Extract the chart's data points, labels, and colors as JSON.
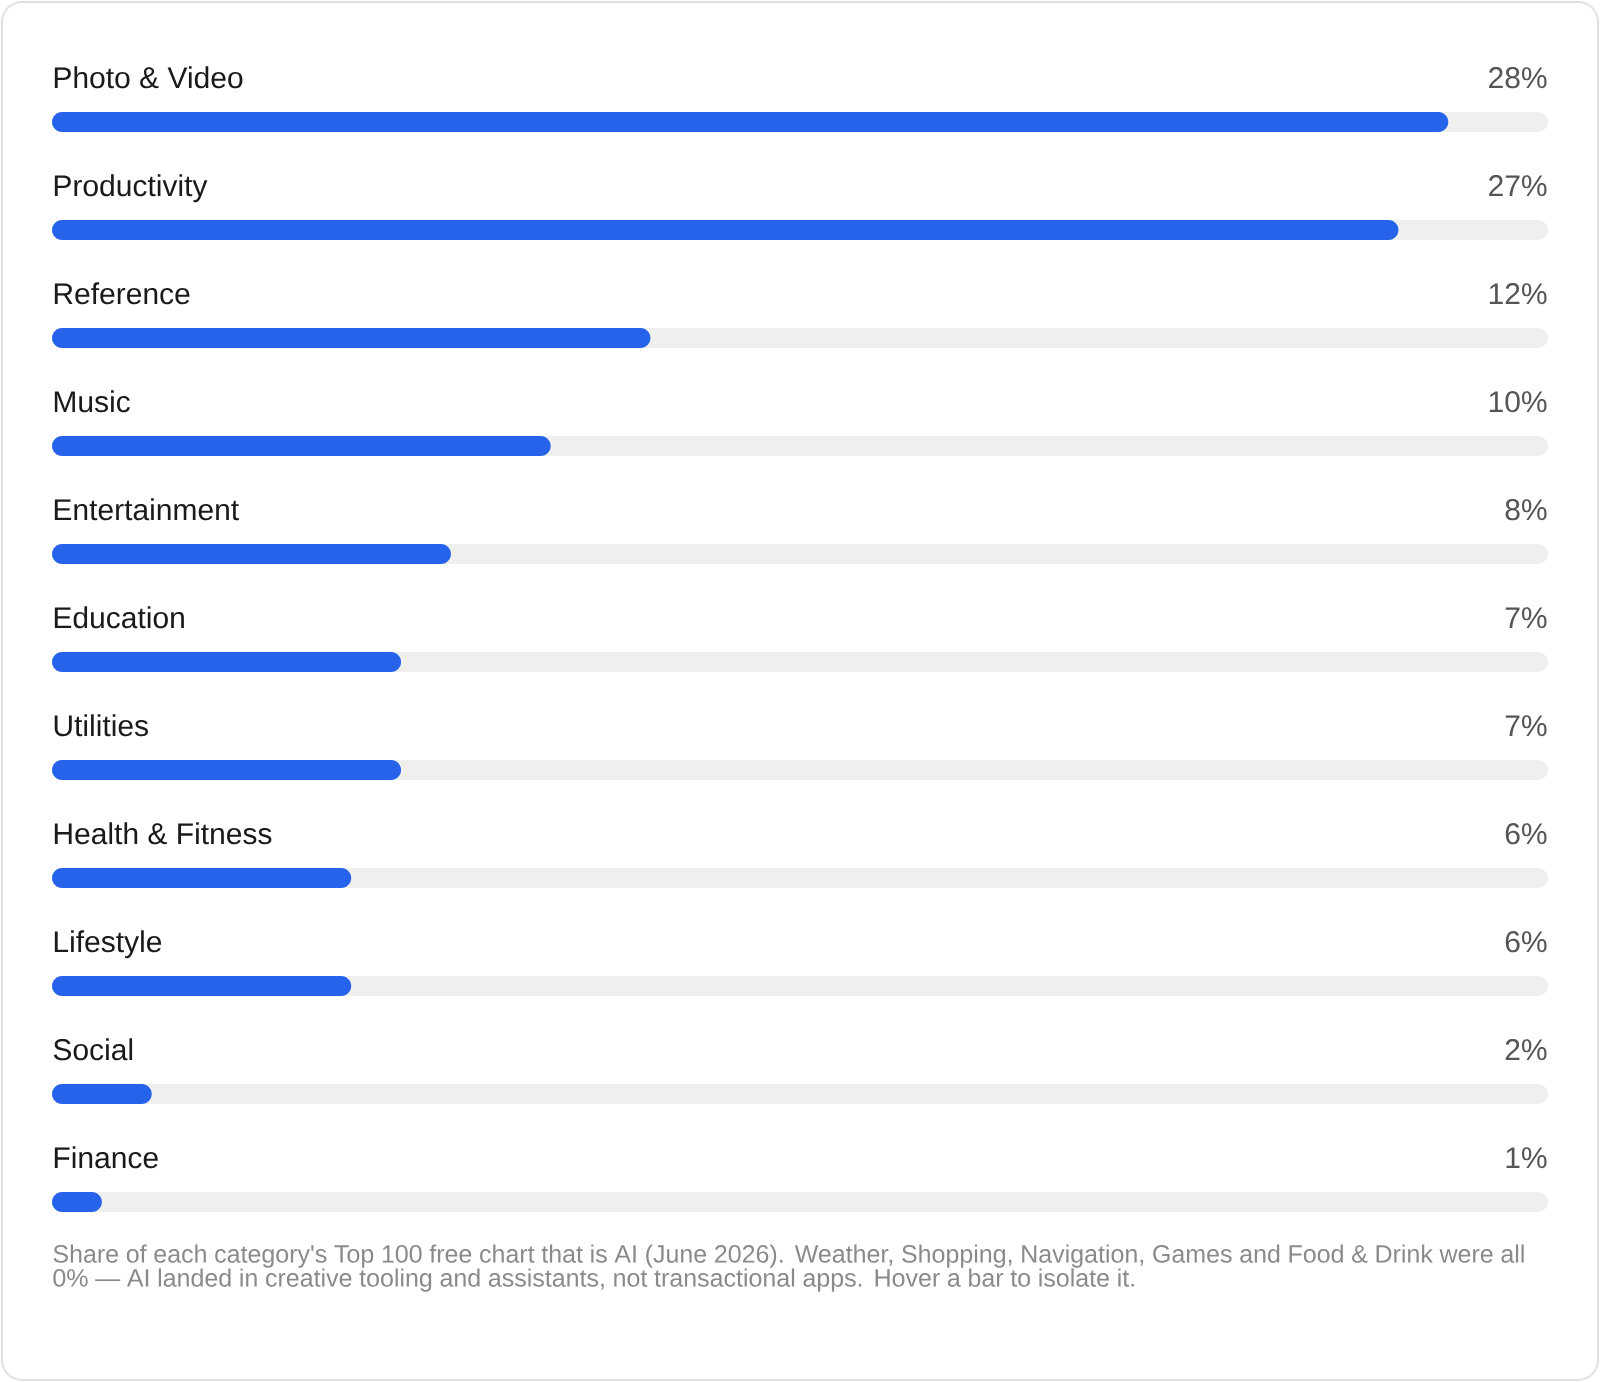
{
  "chart_data": {
    "type": "bar",
    "orientation": "horizontal",
    "categories": [
      "Photo & Video",
      "Productivity",
      "Reference",
      "Music",
      "Entertainment",
      "Education",
      "Utilities",
      "Health & Fitness",
      "Lifestyle",
      "Social",
      "Finance"
    ],
    "values": [
      28,
      27,
      12,
      10,
      8,
      7,
      7,
      6,
      6,
      2,
      1
    ],
    "value_labels": [
      "28%",
      "27%",
      "12%",
      "10%",
      "8%",
      "7%",
      "7%",
      "6%",
      "6%",
      "2%",
      "1%"
    ],
    "color": "#2563eb",
    "xlim": [
      0,
      30
    ],
    "annotations": [
      "Share of each category's Top 100 free chart that is AI (June 2026). Weather, Shopping, Navigation, Games and Food & Drink were all 0% — AI landed in creative tooling and assistants, not transactional apps. Hover a bar to isolate it."
    ]
  }
}
